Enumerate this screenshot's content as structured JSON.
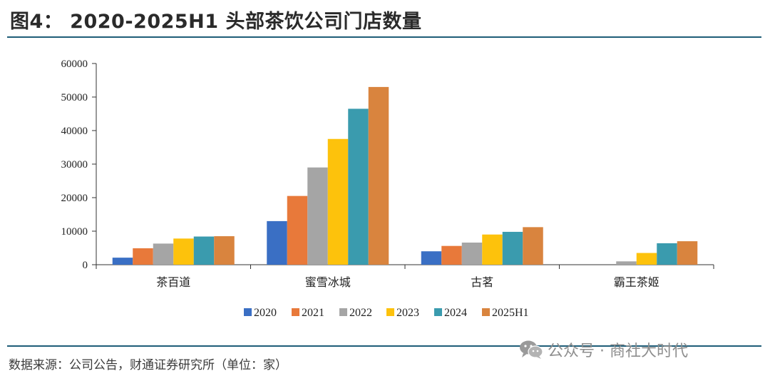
{
  "figure": {
    "title": "图4： 2020-2025H1 头部茶饮公司门店数量",
    "source": "数据来源：公司公告，财通证券研究所（单位：家）"
  },
  "watermark": {
    "icon": "wechat-icon",
    "text": "公众号 · 商社大时代"
  },
  "chart_data": {
    "type": "bar",
    "title": "2020-2025H1 头部茶饮公司门店数量",
    "xlabel": "",
    "ylabel": "",
    "ylim": [
      0,
      60000
    ],
    "yticks": [
      0,
      10000,
      20000,
      30000,
      40000,
      50000,
      60000
    ],
    "ytick_labels": [
      "0",
      "10000",
      "20000",
      "30000",
      "40000",
      "50000",
      "60000"
    ],
    "categories": [
      "茶百道",
      "蜜雪冰城",
      "古茗",
      "霸王茶姬"
    ],
    "series": [
      {
        "name": "2020",
        "color": "#3a6fc4",
        "values": [
          2100,
          13000,
          4000,
          0
        ]
      },
      {
        "name": "2021",
        "color": "#e8793a",
        "values": [
          4900,
          20500,
          5600,
          0
        ]
      },
      {
        "name": "2022",
        "color": "#a5a5a5",
        "values": [
          6300,
          29000,
          6600,
          1000
        ]
      },
      {
        "name": "2023",
        "color": "#fdc20c",
        "values": [
          7800,
          37500,
          9000,
          3500
        ]
      },
      {
        "name": "2024",
        "color": "#3a9bae",
        "values": [
          8400,
          46500,
          9800,
          6400
        ]
      },
      {
        "name": "2025H1",
        "color": "#d9843e",
        "values": [
          8500,
          53000,
          11200,
          7000
        ]
      }
    ],
    "legend_position": "bottom-center",
    "grid": false
  }
}
